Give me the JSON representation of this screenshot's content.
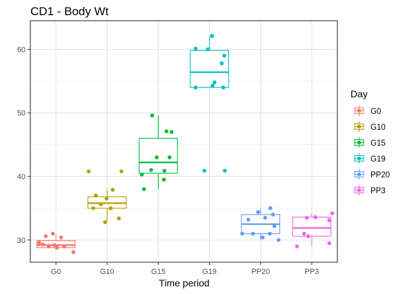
{
  "chart_data": {
    "type": "box",
    "title": "CD1 - Body Wt",
    "xlabel": "Time period",
    "ylabel": "",
    "ylim": [
      26.5,
      64.5
    ],
    "yticks": [
      30,
      40,
      50,
      60
    ],
    "grid": true,
    "legend": {
      "title": "Day",
      "placement": "right"
    },
    "categories": [
      "G0",
      "G10",
      "G15",
      "G19",
      "PP20",
      "PP3"
    ],
    "colors": [
      "#F8766D",
      "#B79F00",
      "#00BA38",
      "#00BFC4",
      "#619CFF",
      "#F564E3"
    ],
    "series": [
      {
        "name": "G0",
        "box": {
          "whisker_low": 28.5,
          "q1": 28.8,
          "median": 29.2,
          "q3": 29.9,
          "whisker_high": 30.9
        },
        "points": [
          {
            "x": -0.2,
            "y": 30.6
          },
          {
            "x": -0.06,
            "y": 31.0
          },
          {
            "x": 0.1,
            "y": 30.4
          },
          {
            "x": -0.33,
            "y": 29.6
          },
          {
            "x": -0.26,
            "y": 29.3
          },
          {
            "x": -0.14,
            "y": 29.0
          },
          {
            "x": 0.02,
            "y": 28.8
          },
          {
            "x": 0.16,
            "y": 29.0
          },
          {
            "x": -0.03,
            "y": 29.2
          },
          {
            "x": 0.34,
            "y": 28.1
          }
        ]
      },
      {
        "name": "G10",
        "box": {
          "whisker_low": 32.8,
          "q1": 35.0,
          "median": 35.8,
          "q3": 36.8,
          "whisker_high": 37.9
        },
        "points": [
          {
            "x": -0.36,
            "y": 40.8
          },
          {
            "x": 0.28,
            "y": 40.8
          },
          {
            "x": 0.11,
            "y": 37.9
          },
          {
            "x": -0.22,
            "y": 37.0
          },
          {
            "x": -0.01,
            "y": 36.5
          },
          {
            "x": -0.27,
            "y": 35.0
          },
          {
            "x": 0.07,
            "y": 35.0
          },
          {
            "x": -0.12,
            "y": 35.6
          },
          {
            "x": 0.23,
            "y": 33.4
          },
          {
            "x": -0.04,
            "y": 32.8
          }
        ]
      },
      {
        "name": "G15",
        "box": {
          "whisker_low": 38.0,
          "q1": 40.5,
          "median": 42.2,
          "q3": 46.0,
          "whisker_high": 49.6
        },
        "points": [
          {
            "x": -0.12,
            "y": 49.6
          },
          {
            "x": 0.16,
            "y": 47.1
          },
          {
            "x": 0.26,
            "y": 47.0
          },
          {
            "x": -0.03,
            "y": 43.0
          },
          {
            "x": 0.22,
            "y": 43.0
          },
          {
            "x": -0.32,
            "y": 40.3
          },
          {
            "x": -0.14,
            "y": 41.0
          },
          {
            "x": 0.12,
            "y": 40.9
          },
          {
            "x": -0.28,
            "y": 38.0
          },
          {
            "x": 0.11,
            "y": 39.5
          }
        ]
      },
      {
        "name": "G19",
        "box": {
          "whisker_low": 54.0,
          "q1": 54.0,
          "median": 56.4,
          "q3": 59.8,
          "whisker_high": 62.1
        },
        "points": [
          {
            "x": 0.05,
            "y": 62.1
          },
          {
            "x": -0.27,
            "y": 60.1
          },
          {
            "x": -0.03,
            "y": 60.0
          },
          {
            "x": 0.29,
            "y": 59.0
          },
          {
            "x": 0.24,
            "y": 57.8
          },
          {
            "x": 0.1,
            "y": 54.8
          },
          {
            "x": 0.06,
            "y": 54.3
          },
          {
            "x": -0.27,
            "y": 54.0
          },
          {
            "x": 0.27,
            "y": 54.0
          },
          {
            "x": -0.1,
            "y": 40.9
          },
          {
            "x": 0.3,
            "y": 40.9
          }
        ]
      },
      {
        "name": "PP20",
        "box": {
          "whisker_low": 30.0,
          "q1": 31.0,
          "median": 32.5,
          "q3": 34.0,
          "whisker_high": 35.0
        },
        "points": [
          {
            "x": -0.05,
            "y": 34.4
          },
          {
            "x": 0.19,
            "y": 35.0
          },
          {
            "x": 0.24,
            "y": 34.0
          },
          {
            "x": -0.24,
            "y": 33.2
          },
          {
            "x": 0.09,
            "y": 33.5
          },
          {
            "x": 0.27,
            "y": 32.2
          },
          {
            "x": -0.36,
            "y": 31.0
          },
          {
            "x": -0.15,
            "y": 31.0
          },
          {
            "x": 0.18,
            "y": 31.0
          },
          {
            "x": 0.04,
            "y": 30.4
          },
          {
            "x": 0.35,
            "y": 30.0
          }
        ]
      },
      {
        "name": "PP3",
        "box": {
          "whisker_low": 29.0,
          "q1": 30.6,
          "median": 31.9,
          "q3": 33.6,
          "whisker_high": 34.2
        },
        "points": [
          {
            "x": 0.4,
            "y": 34.2
          },
          {
            "x": -0.1,
            "y": 33.5
          },
          {
            "x": 0.07,
            "y": 33.6
          },
          {
            "x": 0.34,
            "y": 33.1
          },
          {
            "x": -0.15,
            "y": 31.0
          },
          {
            "x": -0.07,
            "y": 30.6
          },
          {
            "x": -0.29,
            "y": 29.0
          },
          {
            "x": 0.34,
            "y": 29.5
          }
        ]
      }
    ]
  }
}
